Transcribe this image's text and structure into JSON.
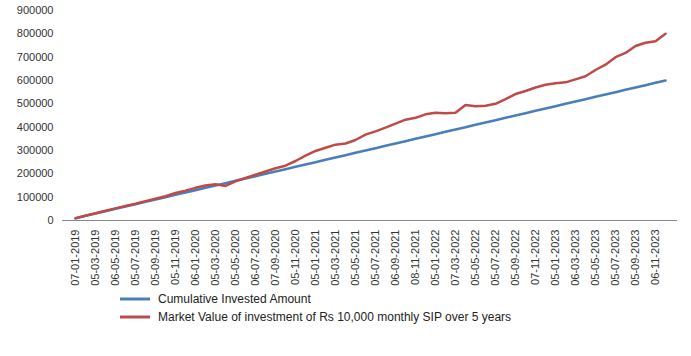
{
  "chart_data": {
    "type": "line",
    "categories": [
      "07-01-2019",
      null,
      "05-03-2019",
      null,
      "06-05-2019",
      null,
      "05-07-2019",
      null,
      "05-09-2019",
      null,
      "05-11-2019",
      null,
      "06-01-2020",
      null,
      "05-03-2020",
      null,
      "05-05-2020",
      null,
      "06-07-2020",
      null,
      "07-09-2020",
      null,
      "05-11-2020",
      null,
      "05-01-2021",
      null,
      "05-03-2021",
      null,
      "05-05-2021",
      null,
      "05-07-2021",
      null,
      "06-09-2021",
      null,
      "08-11-2021",
      null,
      "05-01-2022",
      null,
      "07-03-2022",
      null,
      "05-05-2022",
      null,
      "05-07-2022",
      null,
      "05-09-2022",
      null,
      "07-11-2022",
      null,
      "05-01-2023",
      null,
      "06-03-2023",
      null,
      "05-05-2023",
      null,
      "05-07-2023",
      null,
      "05-09-2023",
      null,
      "06-11-2023",
      null
    ],
    "series": [
      {
        "name": "Cumulative Invested Amount",
        "color": "#4a7ebb",
        "values": [
          10000,
          20000,
          30000,
          40000,
          50000,
          60000,
          70000,
          80000,
          90000,
          100000,
          110000,
          120000,
          130000,
          140000,
          150000,
          160000,
          170000,
          180000,
          190000,
          200000,
          210000,
          220000,
          230000,
          240000,
          250000,
          260000,
          270000,
          280000,
          290000,
          300000,
          310000,
          320000,
          330000,
          340000,
          350000,
          360000,
          370000,
          380000,
          390000,
          400000,
          410000,
          420000,
          430000,
          440000,
          450000,
          460000,
          470000,
          480000,
          490000,
          500000,
          510000,
          520000,
          530000,
          540000,
          550000,
          560000,
          570000,
          580000,
          590000,
          600000
        ]
      },
      {
        "name": "Market Value of investment of Rs 10,000 monthly SIP over 5 years",
        "color": "#be4b48",
        "values": [
          10000,
          20500,
          31000,
          42000,
          52000,
          62500,
          72000,
          83000,
          93000,
          104000,
          118000,
          128000,
          140000,
          150000,
          155000,
          148000,
          168000,
          182000,
          196000,
          210000,
          224000,
          235000,
          255000,
          278000,
          298000,
          312000,
          325000,
          330000,
          345000,
          368000,
          382000,
          398000,
          415000,
          432000,
          440000,
          455000,
          462000,
          460000,
          462000,
          495000,
          490000,
          492000,
          500000,
          520000,
          542000,
          555000,
          570000,
          582000,
          588000,
          592000,
          605000,
          618000,
          645000,
          668000,
          700000,
          718000,
          748000,
          762000,
          768000,
          800000
        ]
      }
    ],
    "ylim": [
      0,
      900000
    ],
    "yticks": [
      0,
      100000,
      200000,
      300000,
      400000,
      500000,
      600000,
      700000,
      800000,
      900000
    ],
    "grid": false,
    "legend": "bottom"
  }
}
